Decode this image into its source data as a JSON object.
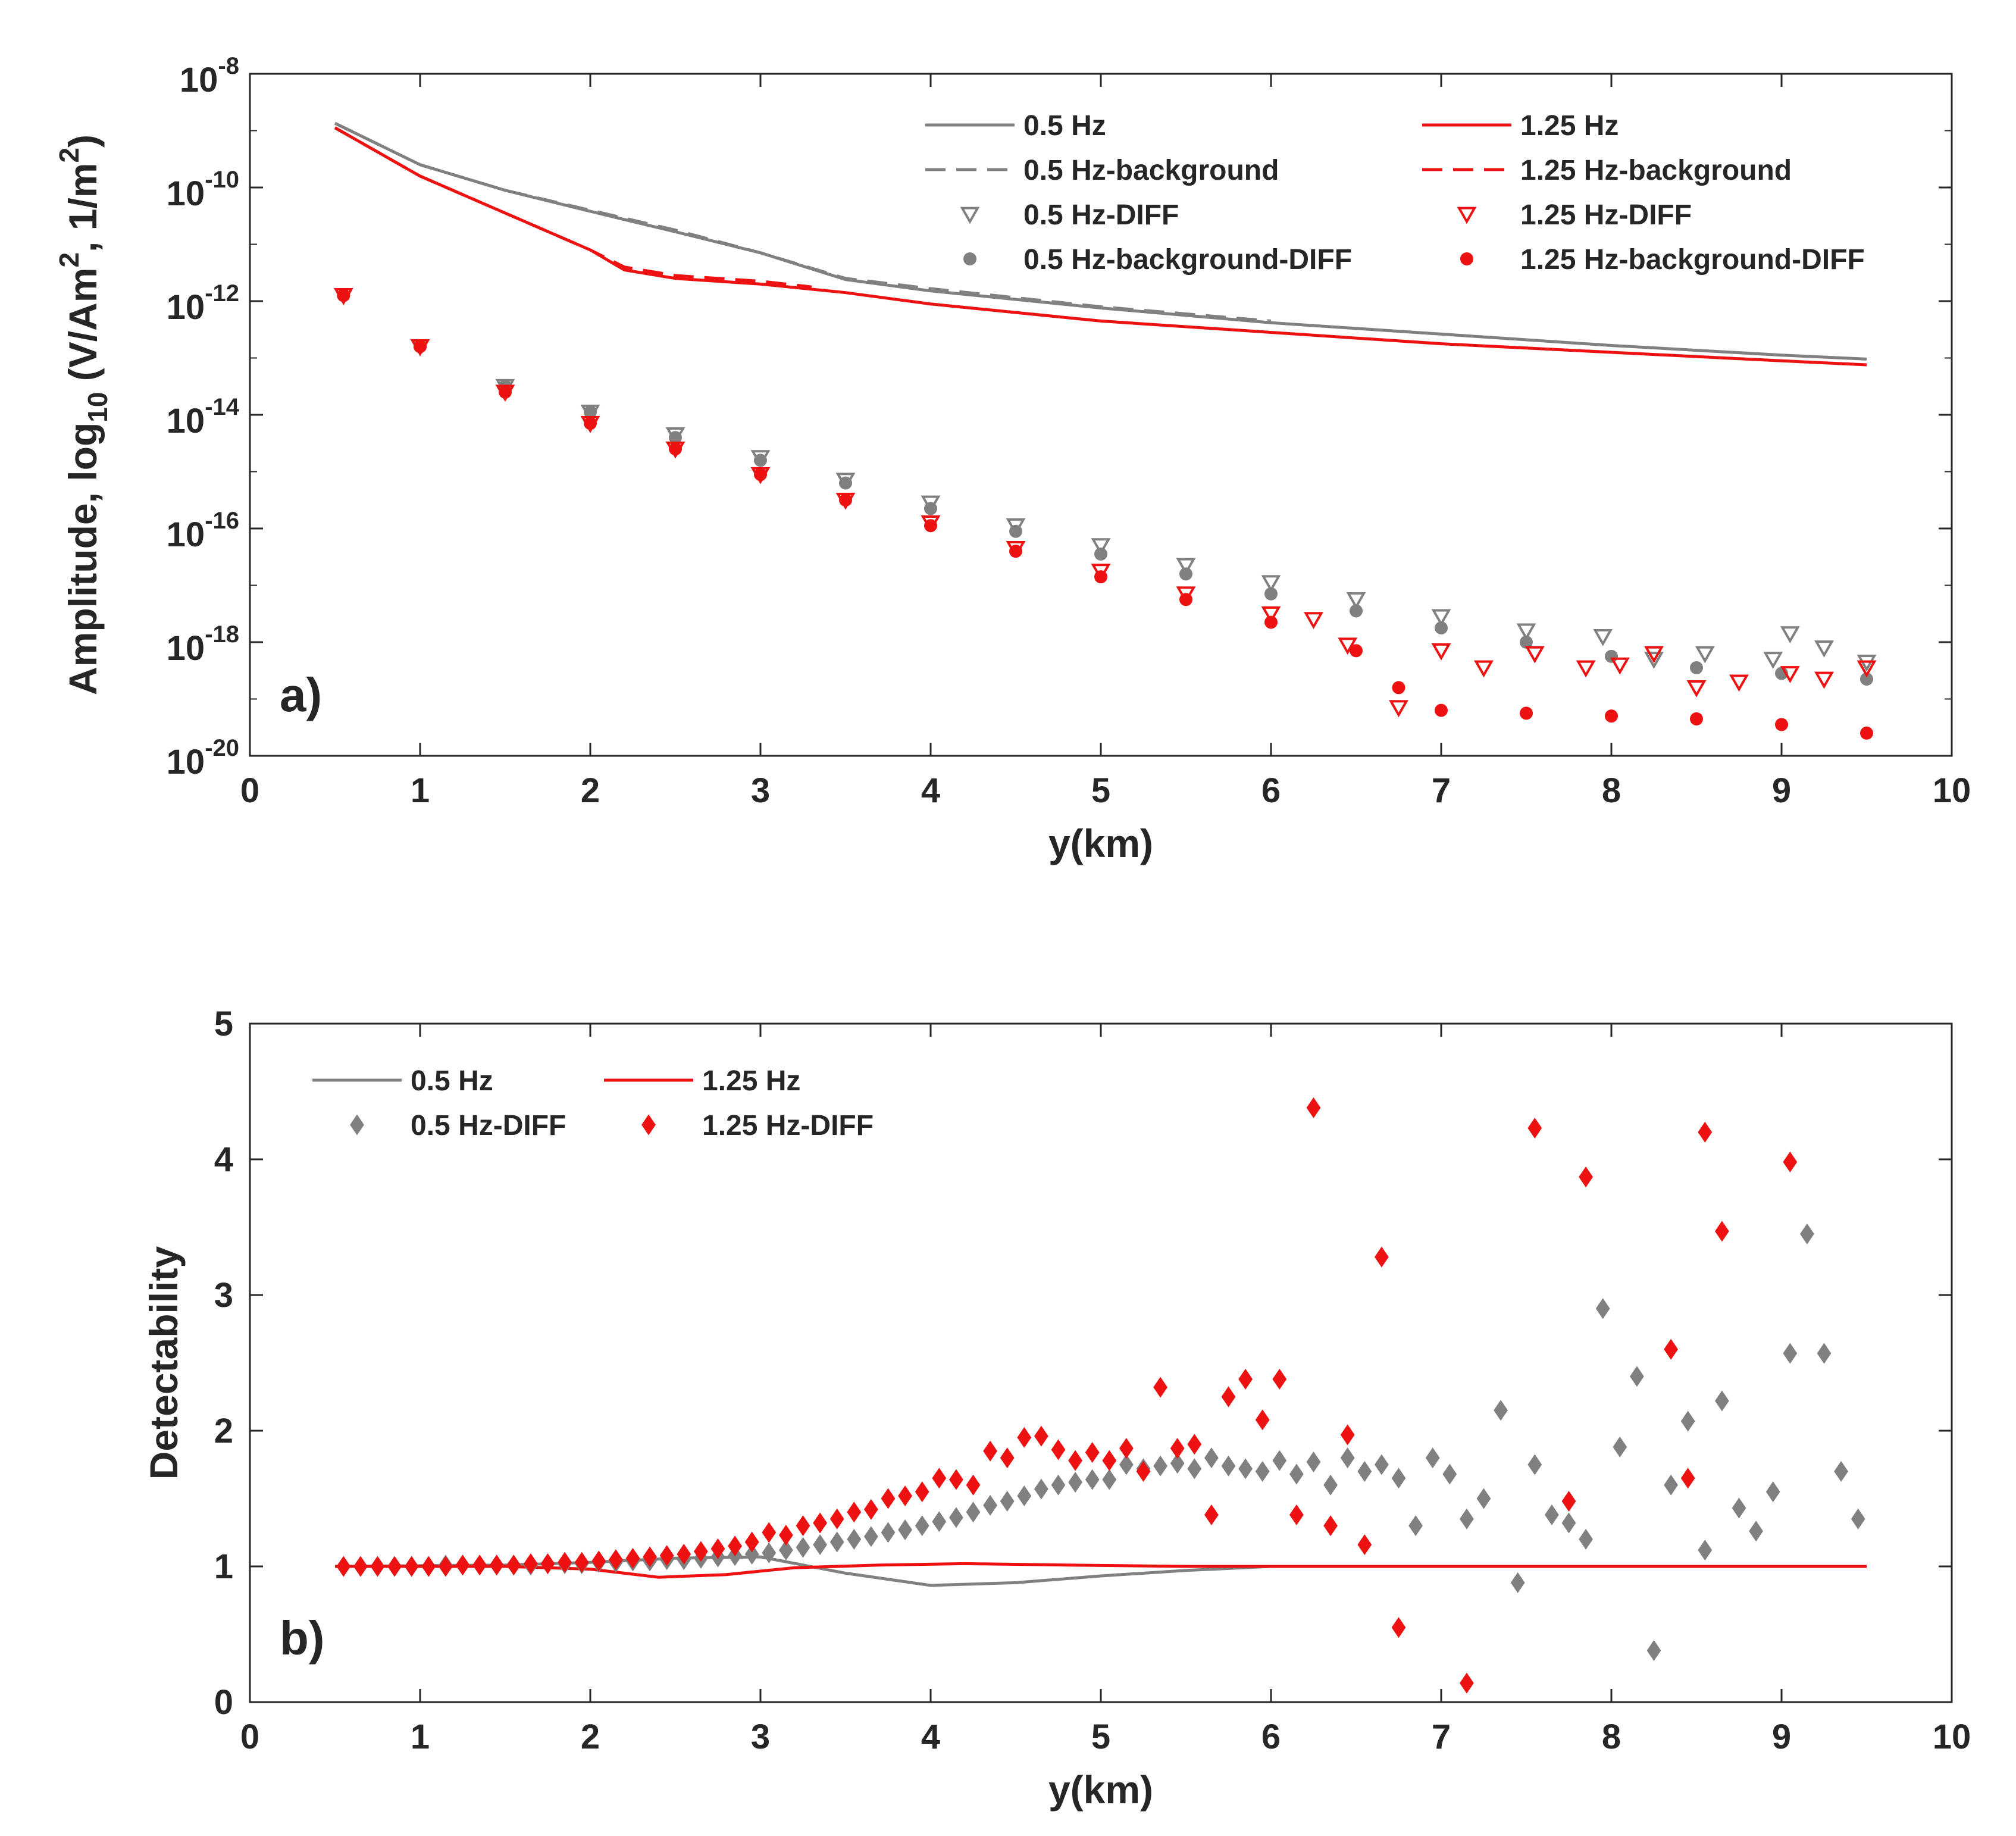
{
  "colors": {
    "gray": "#808080",
    "red": "#ee1111",
    "axis": "#262626"
  },
  "chart_data": [
    {
      "type": "line",
      "panel_label": "a)",
      "xlabel": "y(km)",
      "ylabel": {
        "main": "Amplitude, log",
        "sub": "10",
        "unit_a": " (V/Am",
        "sup_a": "2",
        "unit_b": ", 1/m",
        "sup_b": "2",
        "close": ")"
      },
      "xlim": [
        0,
        10
      ],
      "ylim_log10": [
        -20,
        -8
      ],
      "yscale": "log",
      "x_ticks": [
        0,
        1,
        2,
        3,
        4,
        5,
        6,
        7,
        8,
        9,
        10
      ],
      "y_ticks": [
        {
          "exp": -8,
          "base": "10",
          "sup": "-8"
        },
        {
          "exp": -10,
          "base": "10",
          "sup": "-10"
        },
        {
          "exp": -12,
          "base": "10",
          "sup": "-12"
        },
        {
          "exp": -14,
          "base": "10",
          "sup": "-14"
        },
        {
          "exp": -16,
          "base": "10",
          "sup": "-16"
        },
        {
          "exp": -18,
          "base": "10",
          "sup": "-18"
        },
        {
          "exp": -20,
          "base": "10",
          "sup": "-20"
        }
      ],
      "legend": [
        {
          "label": "0.5 Hz",
          "color": "gray",
          "style": "solid"
        },
        {
          "label": "1.25 Hz",
          "color": "red",
          "style": "solid"
        },
        {
          "label": "0.5 Hz-background",
          "color": "gray",
          "style": "dashed"
        },
        {
          "label": "1.25 Hz-background",
          "color": "red",
          "style": "dashed"
        },
        {
          "label": "0.5 Hz-DIFF",
          "color": "gray",
          "style": "triangle"
        },
        {
          "label": "1.25 Hz-DIFF",
          "color": "red",
          "style": "triangle"
        },
        {
          "label": "0.5 Hz-background-DIFF",
          "color": "gray",
          "style": "dot"
        },
        {
          "label": "1.25 Hz-background-DIFF",
          "color": "red",
          "style": "dot"
        }
      ],
      "series": [
        {
          "name": "0.5 Hz",
          "kind": "line",
          "style": "solid",
          "color": "gray",
          "x": [
            0.5,
            1,
            1.5,
            2,
            2.5,
            3,
            3.5,
            4,
            5,
            6,
            7,
            8,
            9,
            9.5
          ],
          "log10": [
            -8.87,
            -9.6,
            -10.05,
            -10.42,
            -10.78,
            -11.15,
            -11.62,
            -11.82,
            -12.12,
            -12.38,
            -12.58,
            -12.78,
            -12.95,
            -13.02
          ]
        },
        {
          "name": "0.5 Hz-background",
          "kind": "line",
          "style": "dashed",
          "color": "gray",
          "x": [
            0.5,
            1,
            1.5,
            2,
            2.5,
            3,
            3.5,
            4,
            5,
            6
          ],
          "log10": [
            -8.87,
            -9.6,
            -10.05,
            -10.4,
            -10.75,
            -11.15,
            -11.6,
            -11.78,
            -12.1,
            -12.35
          ]
        },
        {
          "name": "1.25 Hz",
          "kind": "line",
          "style": "solid",
          "color": "red",
          "x": [
            0.5,
            1,
            1.5,
            2,
            2.2,
            2.5,
            3,
            3.5,
            4,
            5,
            6,
            7,
            8,
            9,
            9.5
          ],
          "log10": [
            -8.95,
            -9.8,
            -10.45,
            -11.1,
            -11.45,
            -11.6,
            -11.7,
            -11.85,
            -12.05,
            -12.35,
            -12.55,
            -12.75,
            -12.9,
            -13.05,
            -13.12
          ]
        },
        {
          "name": "1.25 Hz-background",
          "kind": "line",
          "style": "dashed",
          "color": "red",
          "x": [
            0.5,
            1,
            1.5,
            2,
            2.2,
            2.5,
            3,
            3.3
          ],
          "log10": [
            -8.95,
            -9.8,
            -10.45,
            -11.1,
            -11.4,
            -11.55,
            -11.65,
            -11.75
          ]
        },
        {
          "name": "0.5 Hz-DIFF",
          "kind": "marker",
          "marker": "triangle-down",
          "color": "gray",
          "x": [
            0.55,
            1.0,
            1.5,
            2.0,
            2.5,
            3.0,
            3.5,
            4.0,
            4.5,
            5.0,
            5.5,
            6.0,
            6.5,
            7.0,
            7.5,
            7.95,
            8.25,
            8.55,
            8.95,
            9.05,
            9.25,
            9.5
          ],
          "log10": [
            -11.9,
            -12.8,
            -13.5,
            -13.95,
            -14.35,
            -14.75,
            -15.15,
            -15.55,
            -15.95,
            -16.3,
            -16.65,
            -16.95,
            -17.25,
            -17.55,
            -17.8,
            -17.9,
            -18.3,
            -18.2,
            -18.3,
            -17.85,
            -18.1,
            -18.35
          ]
        },
        {
          "name": "0.5 Hz-background-DIFF",
          "kind": "marker",
          "marker": "dot",
          "color": "gray",
          "x": [
            0.55,
            1.0,
            1.5,
            2.0,
            2.5,
            3.0,
            3.5,
            4.0,
            4.5,
            5.0,
            5.5,
            6.0,
            6.5,
            7.0,
            7.5,
            8.0,
            8.5,
            9.0,
            9.5
          ],
          "log10": [
            -11.9,
            -12.8,
            -13.5,
            -13.95,
            -14.4,
            -14.8,
            -15.2,
            -15.65,
            -16.05,
            -16.45,
            -16.8,
            -17.15,
            -17.45,
            -17.75,
            -18.0,
            -18.25,
            -18.45,
            -18.55,
            -18.65
          ]
        },
        {
          "name": "1.25 Hz-DIFF",
          "kind": "marker",
          "marker": "triangle-down",
          "color": "red",
          "x": [
            0.55,
            1.0,
            1.5,
            2.0,
            2.5,
            3.0,
            3.5,
            4.0,
            4.5,
            5.0,
            5.5,
            6.0,
            6.25,
            6.45,
            6.75,
            7.0,
            7.25,
            7.55,
            7.85,
            8.05,
            8.25,
            8.5,
            8.75,
            9.05,
            9.25,
            9.5
          ],
          "log10": [
            -11.9,
            -12.8,
            -13.6,
            -14.15,
            -14.6,
            -15.05,
            -15.5,
            -15.9,
            -16.35,
            -16.75,
            -17.15,
            -17.5,
            -17.6,
            -18.05,
            -19.15,
            -18.15,
            -18.45,
            -18.2,
            -18.45,
            -18.4,
            -18.2,
            -18.8,
            -18.7,
            -18.55,
            -18.65,
            -18.45
          ]
        },
        {
          "name": "1.25 Hz-background-DIFF",
          "kind": "marker",
          "marker": "dot",
          "color": "red",
          "x": [
            0.55,
            1.0,
            1.5,
            2.0,
            2.5,
            3.0,
            3.5,
            4.0,
            4.5,
            5.0,
            5.5,
            6.0,
            6.5,
            6.75,
            7.0,
            7.5,
            8.0,
            8.5,
            9.0,
            9.5
          ],
          "log10": [
            -11.9,
            -12.8,
            -13.6,
            -14.15,
            -14.6,
            -15.05,
            -15.5,
            -15.95,
            -16.4,
            -16.85,
            -17.25,
            -17.65,
            -18.15,
            -18.8,
            -19.2,
            -19.25,
            -19.3,
            -19.35,
            -19.45,
            -19.6
          ]
        }
      ]
    },
    {
      "type": "line",
      "panel_label": "b)",
      "xlabel": "y(km)",
      "ylabel": "Detectability",
      "xlim": [
        0,
        10
      ],
      "ylim": [
        0,
        5
      ],
      "x_ticks": [
        0,
        1,
        2,
        3,
        4,
        5,
        6,
        7,
        8,
        9,
        10
      ],
      "y_ticks": [
        0,
        1,
        2,
        3,
        4,
        5
      ],
      "legend": [
        {
          "label": "0.5 Hz",
          "color": "gray",
          "style": "solid"
        },
        {
          "label": "1.25 Hz",
          "color": "red",
          "style": "solid"
        },
        {
          "label": "0.5 Hz-DIFF",
          "color": "gray",
          "style": "diamond"
        },
        {
          "label": "1.25 Hz-DIFF",
          "color": "red",
          "style": "diamond"
        }
      ],
      "series": [
        {
          "name": "0.5 Hz",
          "kind": "line",
          "color": "gray",
          "x": [
            0.5,
            1.5,
            2.0,
            2.5,
            3.0,
            3.5,
            4.0,
            4.5,
            5.0,
            5.5,
            6.0,
            7.0,
            8.0,
            9.0,
            9.5
          ],
          "y": [
            1.0,
            1.01,
            1.03,
            1.06,
            1.07,
            0.95,
            0.86,
            0.88,
            0.93,
            0.97,
            1.0,
            1.0,
            1.0,
            1.0,
            1.0
          ]
        },
        {
          "name": "1.25 Hz",
          "kind": "line",
          "color": "red",
          "x": [
            0.5,
            1.5,
            2.0,
            2.4,
            2.8,
            3.2,
            3.7,
            4.2,
            4.8,
            5.5,
            6.0,
            7.0,
            8.0,
            9.0,
            9.5
          ],
          "y": [
            1.0,
            1.0,
            0.98,
            0.92,
            0.94,
            0.99,
            1.01,
            1.02,
            1.01,
            1.0,
            1.0,
            1.0,
            1.0,
            1.0,
            1.0
          ]
        },
        {
          "name": "0.5 Hz-DIFF",
          "kind": "marker",
          "marker": "diamond",
          "color": "gray",
          "x": [
            0.55,
            0.65,
            0.75,
            0.85,
            0.95,
            1.05,
            1.15,
            1.25,
            1.35,
            1.45,
            1.55,
            1.65,
            1.75,
            1.85,
            1.95,
            2.05,
            2.15,
            2.25,
            2.35,
            2.45,
            2.55,
            2.65,
            2.75,
            2.85,
            2.95,
            3.05,
            3.15,
            3.25,
            3.35,
            3.45,
            3.55,
            3.65,
            3.75,
            3.85,
            3.95,
            4.05,
            4.15,
            4.25,
            4.35,
            4.45,
            4.55,
            4.65,
            4.75,
            4.85,
            4.95,
            5.05,
            5.15,
            5.25,
            5.35,
            5.45,
            5.55,
            5.65,
            5.75,
            5.85,
            5.95,
            6.05,
            6.15,
            6.25,
            6.35,
            6.45,
            6.55,
            6.65,
            6.75,
            6.85,
            6.95,
            7.05,
            7.15,
            7.25,
            7.35,
            7.45,
            7.55,
            7.65,
            7.75,
            7.85,
            7.95,
            8.05,
            8.15,
            8.25,
            8.35,
            8.45,
            8.55,
            8.65,
            8.75,
            8.85,
            8.95,
            9.05,
            9.15,
            9.25,
            9.35,
            9.45
          ],
          "y": [
            1.0,
            1.0,
            1.0,
            1.0,
            1.0,
            1.0,
            1.01,
            1.01,
            1.01,
            1.01,
            1.01,
            1.01,
            1.02,
            1.02,
            1.02,
            1.03,
            1.03,
            1.04,
            1.04,
            1.05,
            1.05,
            1.06,
            1.07,
            1.08,
            1.09,
            1.1,
            1.12,
            1.14,
            1.16,
            1.18,
            1.2,
            1.22,
            1.25,
            1.27,
            1.3,
            1.33,
            1.36,
            1.4,
            1.45,
            1.48,
            1.52,
            1.57,
            1.6,
            1.62,
            1.64,
            1.64,
            1.75,
            1.72,
            1.74,
            1.76,
            1.72,
            1.8,
            1.74,
            1.72,
            1.7,
            1.78,
            1.68,
            1.77,
            1.6,
            1.8,
            1.7,
            1.75,
            1.65,
            1.3,
            1.8,
            1.68,
            1.35,
            1.5,
            2.15,
            0.88,
            1.75,
            1.38,
            1.32,
            1.2,
            2.9,
            1.88,
            2.4,
            0.38,
            1.6,
            2.07,
            1.12,
            2.22,
            1.43,
            1.26,
            1.55,
            2.57,
            3.45,
            2.57,
            1.7,
            1.35
          ]
        },
        {
          "name": "1.25 Hz-DIFF",
          "kind": "marker",
          "marker": "diamond",
          "color": "red",
          "x": [
            0.55,
            0.65,
            0.75,
            0.85,
            0.95,
            1.05,
            1.15,
            1.25,
            1.35,
            1.45,
            1.55,
            1.65,
            1.75,
            1.85,
            1.95,
            2.05,
            2.15,
            2.25,
            2.35,
            2.45,
            2.55,
            2.65,
            2.75,
            2.85,
            2.95,
            3.05,
            3.15,
            3.25,
            3.35,
            3.45,
            3.55,
            3.65,
            3.75,
            3.85,
            3.95,
            4.05,
            4.15,
            4.25,
            4.35,
            4.45,
            4.55,
            4.65,
            4.75,
            4.85,
            4.95,
            5.05,
            5.15,
            5.25,
            5.35,
            5.45,
            5.55,
            5.65,
            5.75,
            5.85,
            5.95,
            6.05,
            6.15,
            6.25,
            6.35,
            6.45,
            6.55,
            6.65,
            6.75,
            7.15,
            7.55,
            7.75,
            7.85,
            8.35,
            8.45,
            8.55,
            8.65,
            9.05
          ],
          "y": [
            1.0,
            1.0,
            1.0,
            1.0,
            1.0,
            1.0,
            1.0,
            1.01,
            1.01,
            1.01,
            1.01,
            1.02,
            1.02,
            1.03,
            1.03,
            1.04,
            1.05,
            1.06,
            1.07,
            1.08,
            1.09,
            1.11,
            1.13,
            1.15,
            1.18,
            1.25,
            1.23,
            1.3,
            1.32,
            1.35,
            1.4,
            1.42,
            1.5,
            1.52,
            1.55,
            1.65,
            1.64,
            1.6,
            1.85,
            1.8,
            1.95,
            1.96,
            1.86,
            1.78,
            1.84,
            1.78,
            1.87,
            1.7,
            2.32,
            1.87,
            1.9,
            1.38,
            2.25,
            2.38,
            2.08,
            2.38,
            1.38,
            4.38,
            1.3,
            1.97,
            1.16,
            3.28,
            0.55,
            0.14,
            4.23,
            1.48,
            3.87,
            2.6,
            1.65,
            4.2,
            3.47,
            3.98
          ]
        }
      ]
    }
  ]
}
